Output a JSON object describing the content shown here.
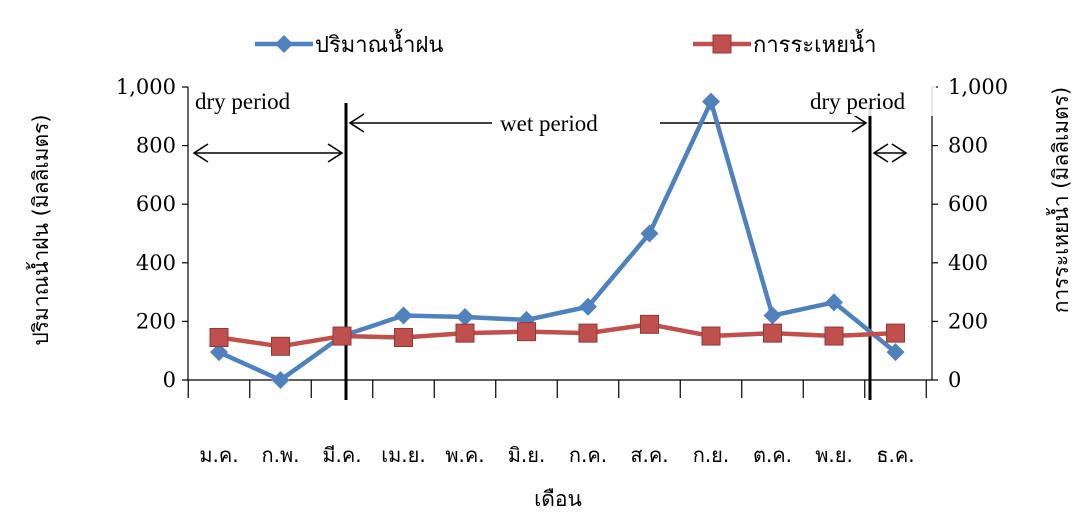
{
  "chart_data": {
    "type": "line",
    "categories": [
      "ม.ค.",
      "ก.พ.",
      "มี.ค.",
      "เม.ย.",
      "พ.ค.",
      "มิ.ย.",
      "ก.ค.",
      "ส.ค.",
      "ก.ย.",
      "ต.ค.",
      "พ.ย.",
      "ธ.ค."
    ],
    "series": [
      {
        "name": "ปริมาณน้ำฝน",
        "color": "#4f81bd",
        "marker": "diamond",
        "values": [
          95,
          0,
          150,
          220,
          215,
          205,
          250,
          500,
          950,
          220,
          265,
          95
        ]
      },
      {
        "name": "การระเหยน้ำ",
        "color": "#c0504d",
        "marker": "square",
        "values": [
          145,
          115,
          150,
          145,
          160,
          165,
          160,
          190,
          150,
          160,
          150,
          160
        ]
      }
    ],
    "xlabel": "เดือน",
    "ylabel_left": "ปริมาณน้ำฝน (มิลลิเมตร)",
    "ylabel_right": "การระเหยน้ำ (มิลลิเมตร)",
    "ylim": [
      0,
      1000
    ],
    "yticks": [
      "0",
      "200",
      "400",
      "600",
      "800",
      "1,000"
    ],
    "legend_position": "top",
    "annotations": {
      "dry_start": "dry  period",
      "wet": "wet period",
      "dry_end": "dry  period"
    }
  }
}
